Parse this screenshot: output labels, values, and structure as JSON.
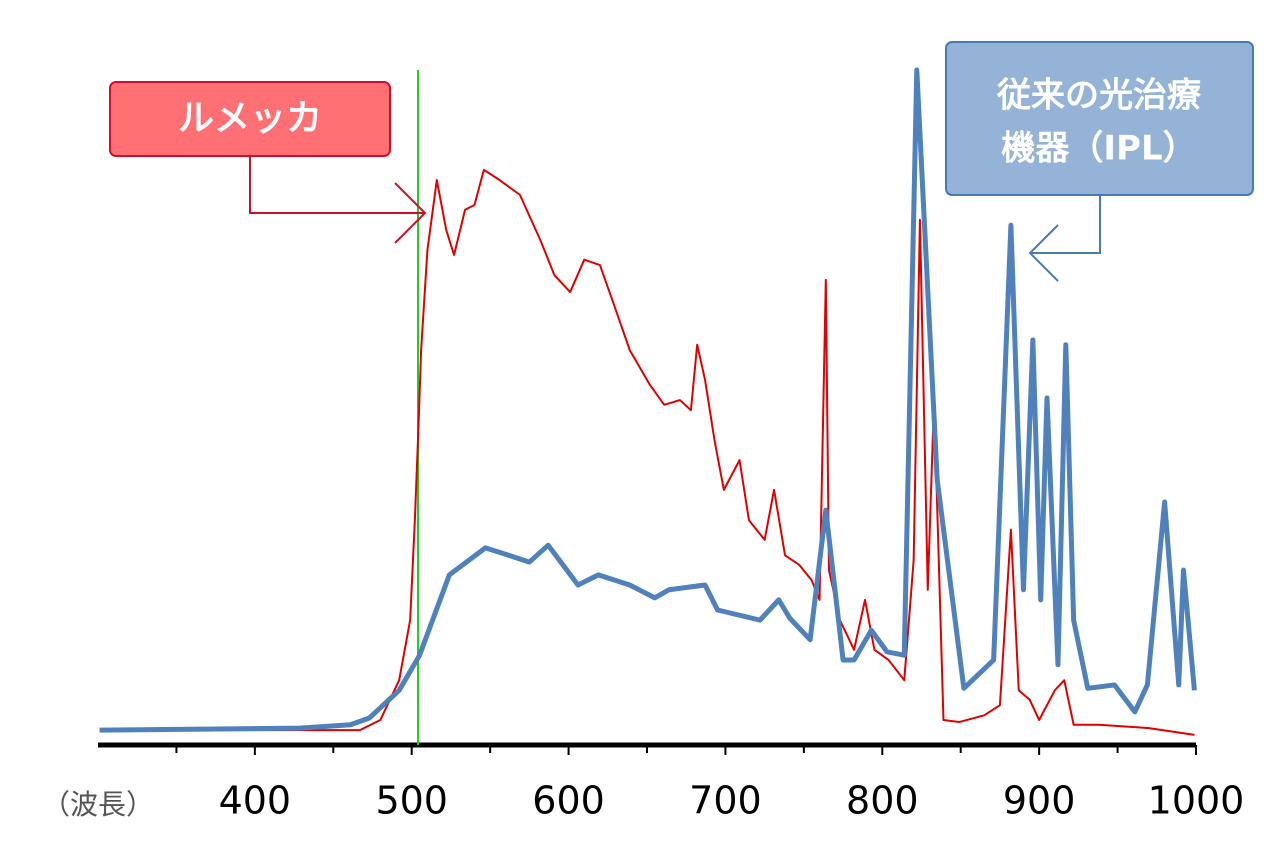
{
  "chart_data": {
    "type": "line",
    "xlabel": "（波長）",
    "xlim": [
      300,
      1000
    ],
    "xticks": [
      400,
      500,
      600,
      700,
      800,
      900,
      1000
    ],
    "xminorticks": [
      350,
      450,
      550,
      650,
      750,
      850,
      950
    ],
    "ylim": [
      0,
      100
    ],
    "marker_x": 504,
    "marker_color": "#22cc22",
    "series": [
      {
        "color": "#e00000",
        "width": 2,
        "x": [
          301,
          429,
          467,
          480,
          492,
          499,
          502,
          504,
          506,
          510,
          516,
          522,
          527,
          534,
          540,
          546,
          556,
          569,
          582,
          591,
          601,
          610,
          620,
          629,
          639,
          652,
          661,
          671,
          678,
          682,
          687,
          693,
          699,
          709,
          715,
          725,
          731,
          738,
          747,
          755,
          760,
          764,
          766,
          773,
          782,
          789,
          795,
          804,
          814,
          820,
          824,
          829,
          833,
          839,
          849,
          865,
          875,
          882,
          887,
          894,
          900,
          910,
          916,
          922,
          938,
          970,
          999
        ],
        "values": [
          2.2,
          2.2,
          2.2,
          3.7,
          9.6,
          18.5,
          33.3,
          45.2,
          58.5,
          73.3,
          83.7,
          76.3,
          72.6,
          79.3,
          80,
          85.2,
          83.7,
          81.5,
          74.8,
          69.6,
          67.1,
          71.9,
          71.1,
          65.2,
          58.5,
          53.3,
          50.4,
          51.1,
          49.6,
          59.3,
          54.1,
          45.2,
          37.8,
          42.2,
          33.3,
          30.4,
          37.8,
          28.1,
          26.7,
          24.4,
          21.5,
          68.9,
          25.9,
          18.5,
          14.1,
          21.5,
          14.1,
          12.6,
          9.6,
          27.4,
          77.8,
          23,
          51.1,
          3.7,
          3.4,
          4.4,
          5.9,
          31.9,
          8.1,
          6.7,
          3.7,
          8.1,
          9.6,
          3,
          3,
          2.5,
          1.5
        ]
      },
      {
        "color": "#4f81bd",
        "width": 5,
        "x": [
          301,
          429,
          461,
          473,
          492,
          505,
          524,
          547,
          562,
          575,
          587,
          606,
          619,
          639,
          655,
          664,
          687,
          695,
          722,
          734,
          741,
          754,
          764,
          775,
          782,
          793,
          803,
          814,
          822,
          835,
          852,
          871,
          882,
          890,
          896,
          901,
          905,
          912,
          917,
          922,
          931,
          948,
          961,
          969,
          980,
          989,
          992,
          999
        ],
        "values": [
          2.2,
          2.5,
          3,
          4,
          8.1,
          13.3,
          25.2,
          29.2,
          28.1,
          27.1,
          29.6,
          23.7,
          25.2,
          23.7,
          21.8,
          23,
          23.7,
          20,
          18.5,
          21.5,
          18.8,
          15.6,
          34.8,
          12.6,
          12.6,
          17,
          13.8,
          13.3,
          100,
          39.3,
          8.4,
          12.6,
          77,
          23,
          60,
          21.5,
          51.4,
          11.9,
          59.3,
          18.5,
          8.4,
          8.9,
          4.9,
          8.9,
          36,
          8.9,
          25.9,
          8.1
        ]
      }
    ],
    "annotations": [
      {
        "lines": [
          "ルメッカ"
        ]
      },
      {
        "lines": [
          "従来の光治療",
          "機器（IPL）"
        ]
      }
    ]
  }
}
